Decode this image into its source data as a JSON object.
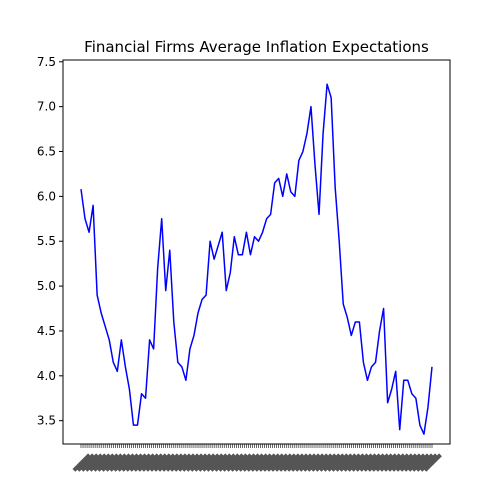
{
  "chart_data": {
    "type": "line",
    "title": "Financial Firms Average Inflation Expectations",
    "xlabel": "",
    "ylabel": "",
    "ylim": [
      3.24,
      7.52
    ],
    "y_ticks": [
      "3.5",
      "4.0",
      "4.5",
      "5.0",
      "5.5",
      "6.0",
      "6.5",
      "7.0",
      "7.5"
    ],
    "x_tick_count": 175,
    "x_tick_labels_legible": false,
    "grid": false,
    "legend": "none",
    "line_color": "#0000ff",
    "x": [
      0,
      2,
      4,
      6,
      8,
      10,
      12,
      14,
      16,
      18,
      20,
      22,
      24,
      26,
      28,
      30,
      32,
      34,
      36,
      38,
      40,
      42,
      44,
      46,
      48,
      50,
      52,
      54,
      56,
      58,
      60,
      62,
      64,
      66,
      68,
      70,
      72,
      74,
      76,
      78,
      80,
      82,
      84,
      86,
      88,
      90,
      92,
      94,
      96,
      98,
      100,
      102,
      104,
      106,
      108,
      110,
      112,
      114,
      116,
      118,
      120,
      122,
      124,
      126,
      128,
      130,
      132,
      134,
      136,
      138,
      140,
      142,
      144,
      146,
      148,
      150,
      152,
      154,
      156,
      158,
      160,
      162,
      164,
      166,
      168,
      170,
      172,
      174
    ],
    "series": [
      {
        "values": [
          6.08,
          5.75,
          5.6,
          5.9,
          4.9,
          4.7,
          4.55,
          4.4,
          4.15,
          4.05,
          4.4,
          4.1,
          3.85,
          3.45,
          3.45,
          3.8,
          3.75,
          4.4,
          4.3,
          5.2,
          5.75,
          4.95,
          5.4,
          4.6,
          4.15,
          4.1,
          3.95,
          4.3,
          4.45,
          4.7,
          4.85,
          4.9,
          5.5,
          5.3,
          5.45,
          5.6,
          4.95,
          5.15,
          5.55,
          5.35,
          5.35,
          5.6,
          5.35,
          5.55,
          5.5,
          5.6,
          5.75,
          5.8,
          6.15,
          6.2,
          6.0,
          6.25,
          6.05,
          6.0,
          6.4,
          6.5,
          6.7,
          7.0,
          6.35,
          5.8,
          6.7,
          7.25,
          7.1,
          6.1,
          5.5,
          4.8,
          4.65,
          4.45,
          4.6,
          4.6,
          4.15,
          3.95,
          4.1,
          4.15,
          4.5,
          4.75,
          3.7,
          3.85,
          4.05,
          3.4,
          3.95,
          3.95,
          3.8,
          3.75,
          3.45,
          3.35,
          3.65,
          4.1
        ]
      }
    ]
  }
}
